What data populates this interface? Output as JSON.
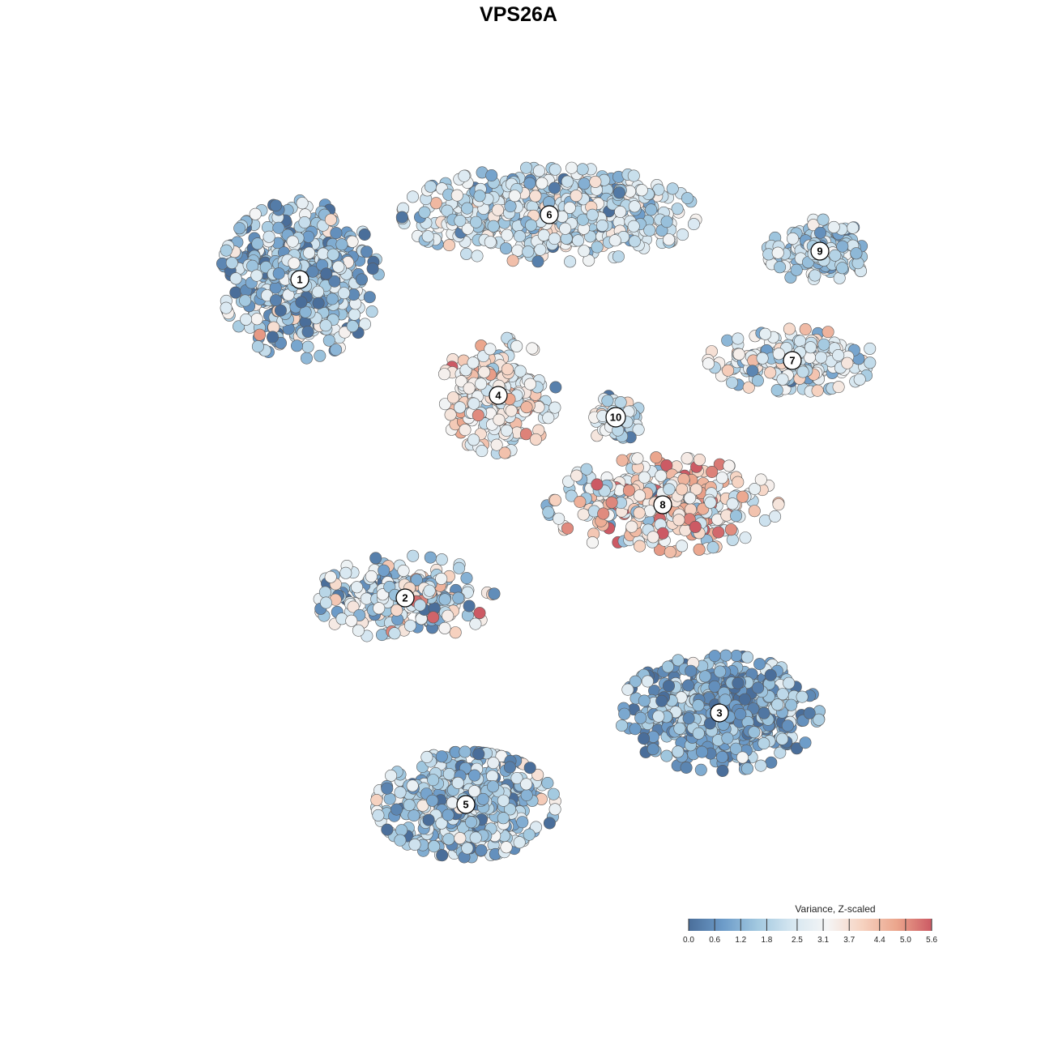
{
  "chart_data": {
    "type": "scatter",
    "title": "VPS26A",
    "legend": {
      "title": "Variance, Z-scaled",
      "placement": "bottom-right",
      "ticks": [
        0.0,
        0.6,
        1.2,
        1.8,
        2.5,
        3.1,
        3.7,
        4.4,
        5.0,
        5.6
      ],
      "tick_labels": [
        "0.0",
        "0.6",
        "1.2",
        "1.8",
        "2.5",
        "3.1",
        "3.7",
        "4.4",
        "5.0",
        "5.6"
      ],
      "range": [
        0.0,
        5.6
      ],
      "colors": [
        "#4a6e9a",
        "#6d9cc9",
        "#a3c9e0",
        "#d6e7f1",
        "#f5f5f5",
        "#f6d2c0",
        "#eba58c",
        "#cc5a64"
      ]
    },
    "grid": false,
    "axes_visible": false,
    "clusters": [
      {
        "label": "1",
        "x": 0.0,
        "y": 0.0,
        "mean": 1.5,
        "spread": 1.0
      },
      {
        "label": "2",
        "x": 0.0,
        "y": 0.0,
        "mean": 2.4,
        "spread": 1.2
      },
      {
        "label": "3",
        "x": 0.0,
        "y": 0.0,
        "mean": 1.1,
        "spread": 0.8
      },
      {
        "label": "4",
        "x": 0.0,
        "y": 0.0,
        "mean": 3.2,
        "spread": 0.9
      },
      {
        "label": "5",
        "x": 0.0,
        "y": 0.0,
        "mean": 1.6,
        "spread": 0.9
      },
      {
        "label": "6",
        "x": 0.0,
        "y": 0.0,
        "mean": 2.3,
        "spread": 0.8
      },
      {
        "label": "7",
        "x": 0.0,
        "y": 0.0,
        "mean": 2.6,
        "spread": 0.9
      },
      {
        "label": "8",
        "x": 0.0,
        "y": 0.0,
        "mean": 3.4,
        "spread": 1.3
      },
      {
        "label": "9",
        "x": 0.0,
        "y": 0.0,
        "mean": 1.9,
        "spread": 0.8
      },
      {
        "label": "10",
        "x": 0.0,
        "y": 0.0,
        "mean": 2.2,
        "spread": 1.0
      }
    ]
  }
}
